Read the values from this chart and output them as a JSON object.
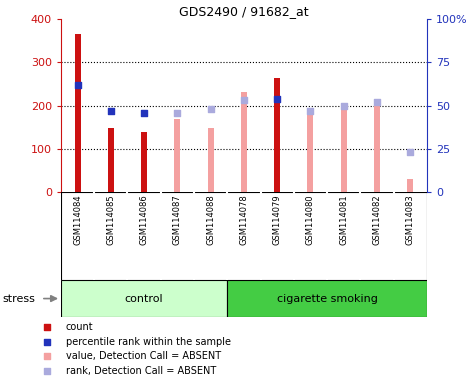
{
  "title": "GDS2490 / 91682_at",
  "samples": [
    "GSM114084",
    "GSM114085",
    "GSM114086",
    "GSM114087",
    "GSM114088",
    "GSM114078",
    "GSM114079",
    "GSM114080",
    "GSM114081",
    "GSM114082",
    "GSM114083"
  ],
  "groups": [
    "control",
    "control",
    "control",
    "control",
    "control",
    "cigarette smoking",
    "cigarette smoking",
    "cigarette smoking",
    "cigarette smoking",
    "cigarette smoking",
    "cigarette smoking"
  ],
  "count_values": [
    365,
    148,
    140,
    null,
    null,
    null,
    263,
    null,
    null,
    null,
    null
  ],
  "percentile_rank": [
    62,
    47,
    46,
    null,
    null,
    null,
    54,
    null,
    null,
    null,
    null
  ],
  "absent_value": [
    null,
    null,
    null,
    170,
    148,
    232,
    null,
    182,
    195,
    205,
    30
  ],
  "absent_rank": [
    null,
    null,
    null,
    46,
    48,
    53,
    null,
    47,
    50,
    52,
    23
  ],
  "ylim_left": [
    0,
    400
  ],
  "ylim_right": [
    0,
    100
  ],
  "yticks_left": [
    0,
    100,
    200,
    300,
    400
  ],
  "yticks_right": [
    0,
    25,
    50,
    75,
    100
  ],
  "yticklabels_right": [
    "0",
    "25",
    "50",
    "75",
    "100%"
  ],
  "color_count": "#cc1111",
  "color_rank": "#2233bb",
  "color_absent_value": "#f4a0a0",
  "color_absent_rank": "#aaaadd",
  "color_control_bg": "#ccffcc",
  "color_smoking_bg": "#44cc44",
  "color_label_area": "#cccccc",
  "bar_width": 0.18,
  "control_label": "control",
  "smoking_label": "cigarette smoking",
  "stress_label": "stress",
  "legend_items": [
    "count",
    "percentile rank within the sample",
    "value, Detection Call = ABSENT",
    "rank, Detection Call = ABSENT"
  ],
  "n_control": 5,
  "n_smoking": 6
}
